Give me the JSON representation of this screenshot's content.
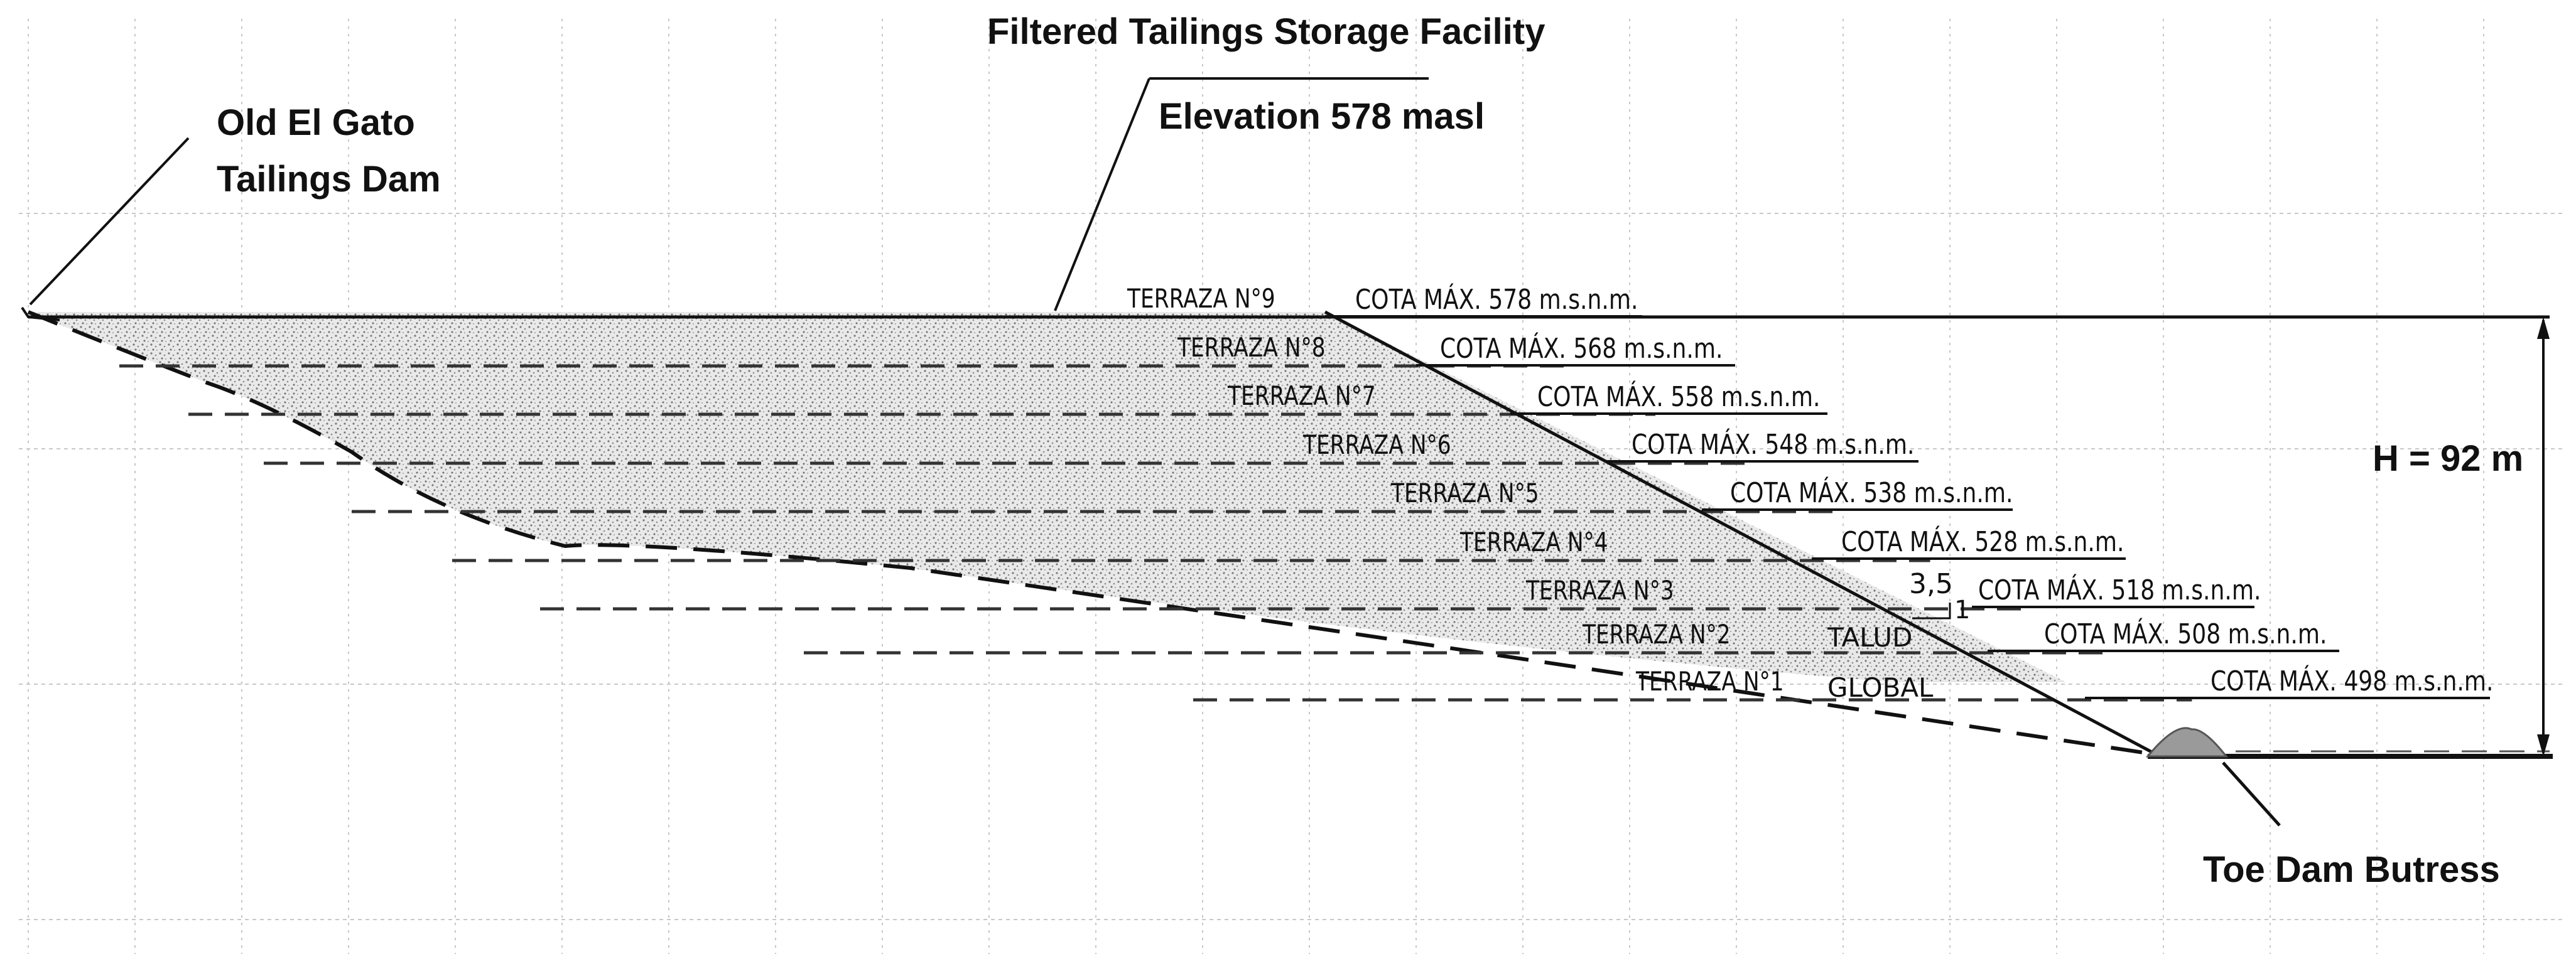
{
  "labels": {
    "facility_title": "Filtered Tailings Storage Facility",
    "facility_elevation": "Elevation 578 masl",
    "old_dam_line1": "Old El Gato",
    "old_dam_line2": "Tailings Dam",
    "height": "H = 92 m",
    "toe_buttress": "Toe Dam Butress",
    "slope_ratio_h": "3,5",
    "slope_ratio_v": "1",
    "talud": "TALUD",
    "global": "GLOBAL"
  },
  "terraces": [
    {
      "terrace": "TERRAZA N°9",
      "cota": "COTA MÁX. 578 m.s.n.m."
    },
    {
      "terrace": "TERRAZA N°8",
      "cota": "COTA MÁX. 568 m.s.n.m."
    },
    {
      "terrace": "TERRAZA N°7",
      "cota": "COTA MÁX. 558 m.s.n.m."
    },
    {
      "terrace": "TERRAZA N°6",
      "cota": "COTA MÁX. 548 m.s.n.m."
    },
    {
      "terrace": "TERRAZA N°5",
      "cota": "COTA MÁX. 538 m.s.n.m."
    },
    {
      "terrace": "TERRAZA N°4",
      "cota": "COTA MÁX. 528 m.s.n.m."
    },
    {
      "terrace": "TERRAZA N°3",
      "cota": "COTA MÁX. 518 m.s.n.m."
    },
    {
      "terrace": "TERRAZA N°2",
      "cota": "COTA MÁX. 508 m.s.n.m."
    },
    {
      "terrace": "TERRAZA N°1",
      "cota": "COTA MÁX. 498 m.s.n.m."
    }
  ],
  "colors": {
    "line": "#111111",
    "grid": "#c8c8c8",
    "fill": "#bdbdbd",
    "buttress": "#9a9a9a"
  }
}
